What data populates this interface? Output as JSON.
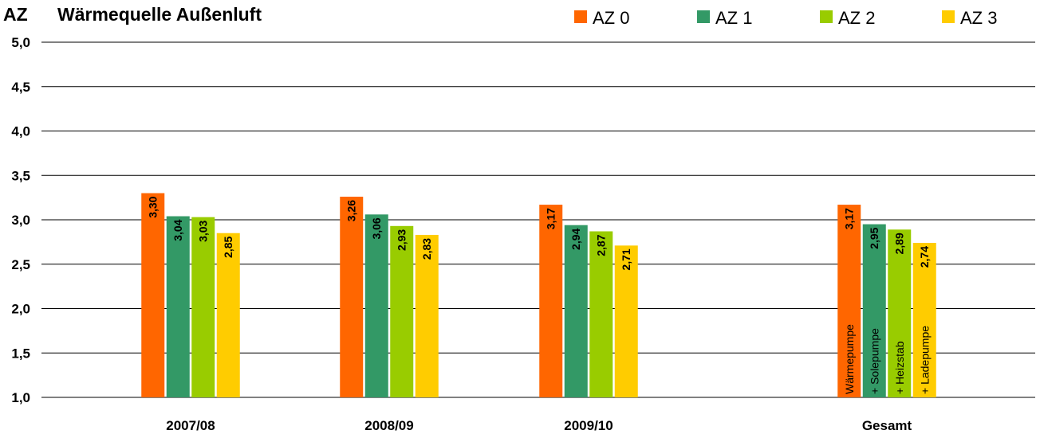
{
  "chart_data": {
    "type": "bar",
    "title": "Wärmequelle Außenluft",
    "ylabel": "AZ",
    "xlabel": "",
    "categories": [
      "2007/08",
      "2008/09",
      "2009/10",
      "Gesamt"
    ],
    "series": [
      {
        "name": "AZ 0",
        "color": "#ff6600",
        "values": [
          3.3,
          3.26,
          3.17,
          3.17
        ],
        "labels": [
          "3,30",
          "3,26",
          "3,17",
          "3,17"
        ]
      },
      {
        "name": "AZ 1",
        "color": "#339966",
        "values": [
          3.04,
          3.06,
          2.94,
          2.95
        ],
        "labels": [
          "3,04",
          "3,06",
          "2,94",
          "2,95"
        ]
      },
      {
        "name": "AZ 2",
        "color": "#99cc00",
        "values": [
          3.03,
          2.93,
          2.87,
          2.89
        ],
        "labels": [
          "3,03",
          "2,93",
          "2,87",
          "2,89"
        ]
      },
      {
        "name": "AZ 3",
        "color": "#ffcc00",
        "values": [
          2.85,
          2.83,
          2.71,
          2.74
        ],
        "labels": [
          "2,85",
          "2,83",
          "2,71",
          "2,74"
        ]
      }
    ],
    "ylim": [
      1.0,
      5.0
    ],
    "yticks": [
      "1,0",
      "1,5",
      "2,0",
      "2,5",
      "3,0",
      "3,5",
      "4,0",
      "4,5",
      "5,0"
    ],
    "grid": true,
    "legend_position": "top-right",
    "annotations": {
      "category": "Gesamt",
      "labels": [
        "Wärmepumpe",
        "+ Solepumpe",
        "+ Heizstab",
        "+ Ladepumpe"
      ]
    }
  }
}
